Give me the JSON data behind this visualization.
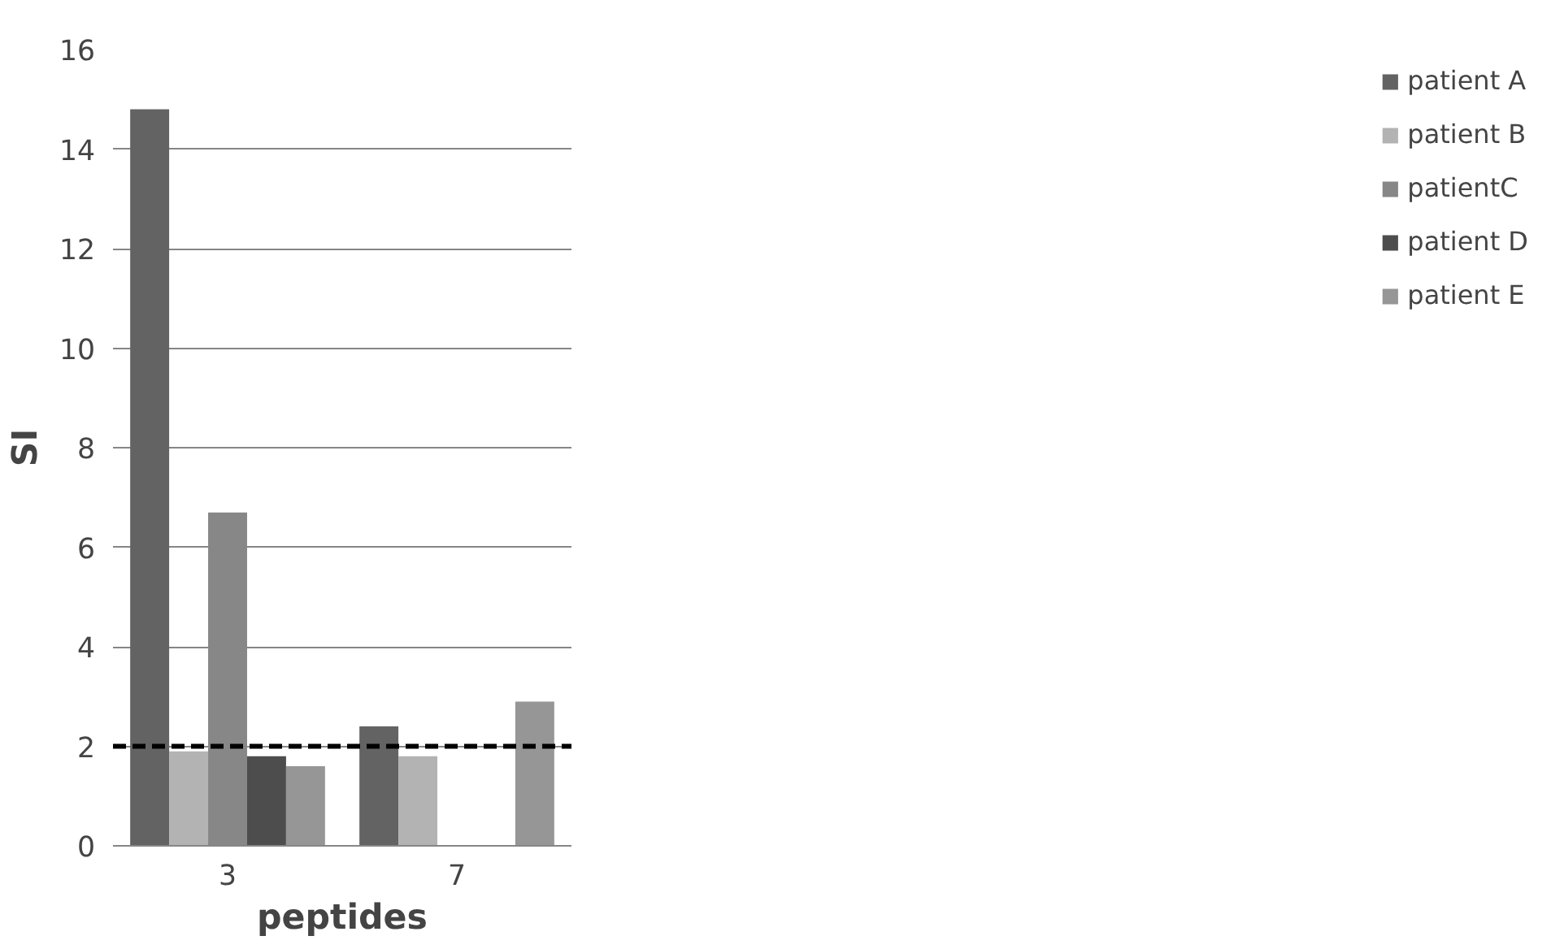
{
  "chart_data": {
    "type": "bar",
    "xlabel": "peptides",
    "ylabel": "SI",
    "categories": [
      "3",
      "7"
    ],
    "series": [
      {
        "name": "patient A",
        "color": "#636363",
        "values": [
          14.8,
          2.4
        ]
      },
      {
        "name": "patient B",
        "color": "#b3b3b3",
        "values": [
          1.9,
          1.8
        ]
      },
      {
        "name": "patientC",
        "color": "#878787",
        "values": [
          6.7,
          null
        ]
      },
      {
        "name": "patient D",
        "color": "#4d4d4d",
        "values": [
          1.8,
          null
        ]
      },
      {
        "name": "patient E",
        "color": "#969696",
        "values": [
          1.6,
          2.9
        ]
      }
    ],
    "ylim": [
      0,
      16
    ],
    "yticks": [
      0,
      2,
      4,
      6,
      8,
      10,
      12,
      14,
      16
    ],
    "grid": "y",
    "legend": "right",
    "ref_lines": [
      {
        "axis": "y",
        "value": 2,
        "color": "#000000",
        "line_style": "dashed"
      }
    ]
  }
}
